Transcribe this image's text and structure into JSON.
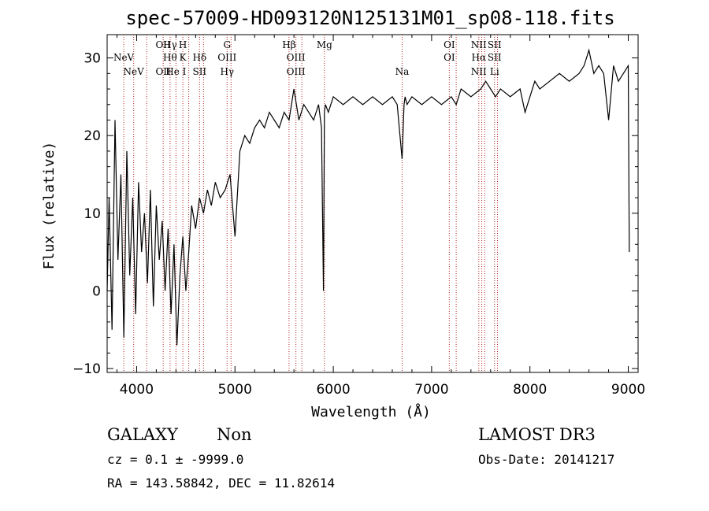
{
  "chart_data": {
    "type": "line",
    "title": "spec-57009-HD093120N125131M01_sp08-118.fits",
    "xlabel": "Wavelength (Å)",
    "ylabel": "Flux (relative)",
    "xlim": [
      3700,
      9100
    ],
    "ylim": [
      -10.5,
      33
    ],
    "x_ticks": [
      4000,
      5000,
      6000,
      7000,
      8000,
      9000
    ],
    "y_ticks": [
      -10,
      0,
      10,
      20,
      30
    ],
    "grid": false,
    "series": [
      {
        "color": "#000000",
        "x": [
          3700,
          3720,
          3750,
          3780,
          3810,
          3840,
          3870,
          3900,
          3930,
          3960,
          3990,
          4020,
          4050,
          4080,
          4110,
          4140,
          4170,
          4200,
          4230,
          4260,
          4290,
          4320,
          4350,
          4380,
          4410,
          4440,
          4470,
          4500,
          4530,
          4560,
          4600,
          4640,
          4680,
          4720,
          4760,
          4800,
          4850,
          4900,
          4950,
          5000,
          5050,
          5100,
          5150,
          5200,
          5250,
          5300,
          5350,
          5400,
          5450,
          5500,
          5550,
          5600,
          5650,
          5700,
          5750,
          5800,
          5850,
          5880,
          5900,
          5910,
          5920,
          5950,
          6000,
          6100,
          6200,
          6300,
          6400,
          6500,
          6600,
          6650,
          6700,
          6720,
          6730,
          6750,
          6800,
          6900,
          7000,
          7100,
          7200,
          7250,
          7300,
          7400,
          7500,
          7550,
          7600,
          7650,
          7700,
          7800,
          7900,
          7950,
          8000,
          8050,
          8100,
          8200,
          8300,
          8400,
          8500,
          8550,
          8600,
          8650,
          8700,
          8750,
          8800,
          8850,
          8900,
          8950,
          9000,
          9010
        ],
        "y": [
          0,
          12,
          -5,
          22,
          4,
          15,
          -6,
          18,
          2,
          12,
          -3,
          14,
          5,
          10,
          1,
          13,
          -2,
          11,
          4,
          9,
          0,
          8,
          -3,
          6,
          -7,
          2,
          7,
          0,
          5,
          11,
          8,
          12,
          10,
          13,
          11,
          14,
          12,
          13,
          15,
          7,
          18,
          20,
          19,
          21,
          22,
          21,
          23,
          22,
          21,
          23,
          22,
          26,
          22,
          24,
          23,
          22,
          24,
          21,
          0,
          23,
          24,
          23,
          25,
          24,
          25,
          24,
          25,
          24,
          25,
          24,
          17,
          24,
          25,
          24,
          25,
          24,
          25,
          24,
          25,
          24,
          26,
          25,
          26,
          27,
          26,
          25,
          26,
          25,
          26,
          23,
          25,
          27,
          26,
          27,
          28,
          27,
          28,
          29,
          31,
          28,
          29,
          28,
          22,
          29,
          27,
          28,
          29,
          5
        ]
      }
    ],
    "lines": [
      {
        "x": 3869,
        "labels": [
          "NeV"
        ],
        "rows": [
          1
        ]
      },
      {
        "x": 3970,
        "labels": [
          "NeV"
        ],
        "rows": [
          3
        ]
      },
      {
        "x": 4102,
        "labels": [],
        "rows": []
      },
      {
        "x": 4270,
        "labels": [
          "OII",
          "OII"
        ],
        "rows": [
          0,
          3
        ]
      },
      {
        "x": 4340,
        "labels": [
          "Hγ",
          "Hθ"
        ],
        "rows": [
          0,
          1
        ]
      },
      {
        "x": 4400,
        "labels": [
          "He I"
        ],
        "rows": [
          3
        ]
      },
      {
        "x": 4470,
        "labels": [
          "H",
          "K"
        ],
        "rows": [
          0,
          1
        ]
      },
      {
        "x": 4530,
        "labels": [],
        "rows": []
      },
      {
        "x": 4640,
        "labels": [
          "Hδ",
          "SII"
        ],
        "rows": [
          1,
          3
        ]
      },
      {
        "x": 4680,
        "labels": [],
        "rows": []
      },
      {
        "x": 4920,
        "labels": [
          "G",
          "OIII",
          "Hγ"
        ],
        "rows": [
          0,
          2,
          3
        ]
      },
      {
        "x": 4960,
        "labels": [],
        "rows": []
      },
      {
        "x": 5550,
        "labels": [
          "Hβ"
        ],
        "rows": [
          0
        ]
      },
      {
        "x": 5620,
        "labels": [
          "OIII",
          "OIII"
        ],
        "rows": [
          2,
          3
        ]
      },
      {
        "x": 5680,
        "labels": [],
        "rows": []
      },
      {
        "x": 5910,
        "labels": [
          "Mg"
        ],
        "rows": [
          0
        ]
      },
      {
        "x": 6700,
        "labels": [
          "Na"
        ],
        "rows": [
          3
        ]
      },
      {
        "x": 7180,
        "labels": [
          "OI",
          "OI"
        ],
        "rows": [
          0,
          2
        ]
      },
      {
        "x": 7250,
        "labels": [],
        "rows": []
      },
      {
        "x": 7480,
        "labels": [
          "NII",
          "Hα",
          "NII"
        ],
        "rows": [
          0,
          2,
          3
        ]
      },
      {
        "x": 7510,
        "labels": [],
        "rows": []
      },
      {
        "x": 7540,
        "labels": [],
        "rows": []
      },
      {
        "x": 7640,
        "labels": [
          "SII",
          "SII",
          "Li"
        ],
        "rows": [
          0,
          2,
          3
        ]
      },
      {
        "x": 7670,
        "labels": [],
        "rows": []
      }
    ]
  },
  "info": {
    "class": "GALAXY",
    "subclass": "Non",
    "survey": "LAMOST DR3",
    "redshift": "cz = 0.1 ± -9999.0",
    "obs_date": "Obs-Date: 20141217",
    "coords": "RA = 143.58842, DEC =  11.82614"
  }
}
